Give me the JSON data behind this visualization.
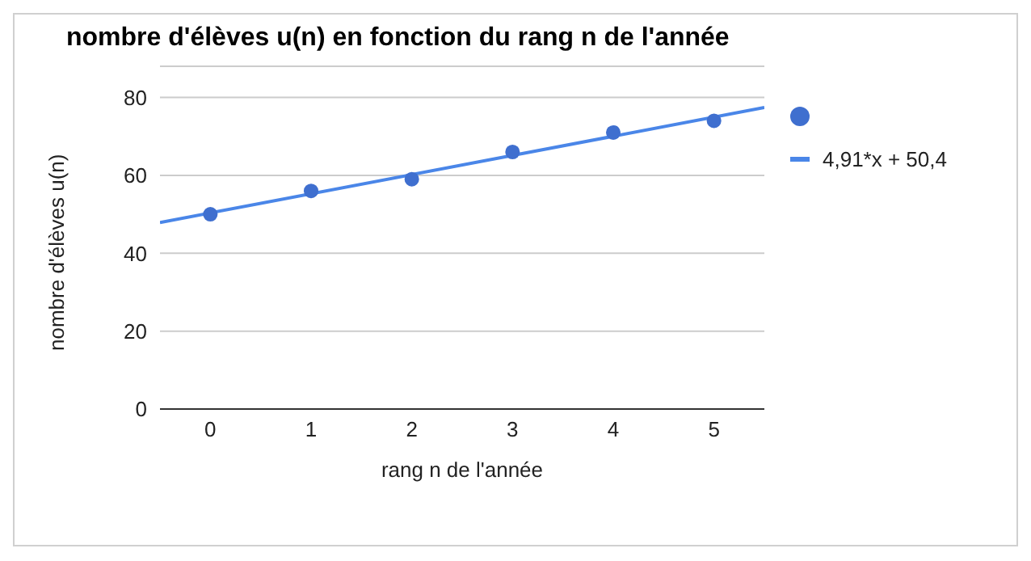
{
  "chart_data": {
    "type": "scatter",
    "title": "nombre d'élèves u(n) en fonction du rang n de l'année",
    "xlabel": "rang n de l'année",
    "ylabel": "nombre d'élèves u(n)",
    "x": [
      0,
      1,
      2,
      3,
      4,
      5
    ],
    "series": [
      {
        "color": "#3f6fcf",
        "marker": "circle",
        "values": [
          50,
          56,
          59,
          66,
          71,
          74
        ]
      },
      {
        "type": "line",
        "name": "4,91*x + 50,4",
        "color": "#4a86e8",
        "marker": "none",
        "x": [
          -0.5,
          5.5
        ],
        "values": [
          47.9,
          77.4
        ]
      }
    ],
    "xlim": [
      -0.5,
      5.5
    ],
    "xticks": [
      0,
      1,
      2,
      3,
      4,
      5
    ],
    "ylim": [
      0,
      88
    ],
    "yticks": [
      0,
      20,
      40,
      60,
      80
    ],
    "grid": "y",
    "legend": "top right"
  }
}
